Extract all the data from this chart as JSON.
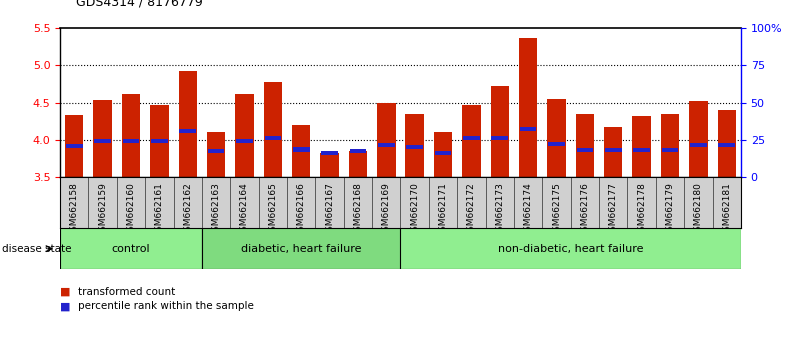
{
  "title": "GDS4314 / 8176779",
  "samples": [
    "GSM662158",
    "GSM662159",
    "GSM662160",
    "GSM662161",
    "GSM662162",
    "GSM662163",
    "GSM662164",
    "GSM662165",
    "GSM662166",
    "GSM662167",
    "GSM662168",
    "GSM662169",
    "GSM662170",
    "GSM662171",
    "GSM662172",
    "GSM662173",
    "GSM662174",
    "GSM662175",
    "GSM662176",
    "GSM662177",
    "GSM662178",
    "GSM662179",
    "GSM662180",
    "GSM662181"
  ],
  "red_values": [
    4.33,
    4.53,
    4.62,
    4.47,
    4.93,
    4.1,
    4.62,
    4.78,
    4.2,
    3.82,
    3.85,
    4.5,
    4.35,
    4.1,
    4.47,
    4.73,
    5.37,
    4.55,
    4.35,
    4.17,
    4.32,
    4.35,
    4.52,
    4.4
  ],
  "blue_values": [
    3.92,
    3.98,
    3.98,
    3.98,
    4.12,
    3.85,
    3.98,
    4.02,
    3.87,
    3.82,
    3.85,
    3.93,
    3.9,
    3.82,
    4.02,
    4.03,
    4.15,
    3.95,
    3.86,
    3.86,
    3.86,
    3.86,
    3.93,
    3.93
  ],
  "groups": [
    {
      "label": "control",
      "start": 0,
      "end": 5,
      "color": "#90EE90"
    },
    {
      "label": "diabetic, heart failure",
      "start": 5,
      "end": 12,
      "color": "#7FDB7F"
    },
    {
      "label": "non-diabetic, heart failure",
      "start": 12,
      "end": 24,
      "color": "#90EE90"
    }
  ],
  "ylim_left": [
    3.5,
    5.5
  ],
  "yticks_left": [
    3.5,
    4.0,
    4.5,
    5.0,
    5.5
  ],
  "yticks_right": [
    0,
    25,
    50,
    75,
    100
  ],
  "ytick_labels_right": [
    "0",
    "25",
    "50",
    "75",
    "100%"
  ],
  "bar_color": "#CC2200",
  "blue_color": "#2222CC",
  "tick_bg_color": "#d0d0d0",
  "bar_width": 0.65,
  "legend_items": [
    {
      "color": "#CC2200",
      "label": "transformed count"
    },
    {
      "color": "#2222CC",
      "label": "percentile rank within the sample"
    }
  ]
}
